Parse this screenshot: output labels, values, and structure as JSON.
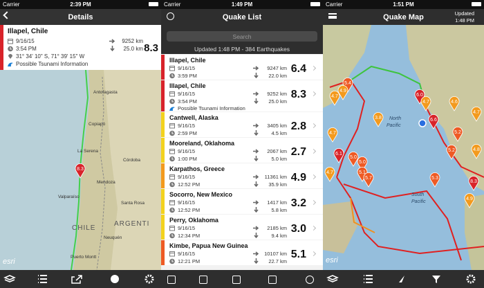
{
  "screens": [
    {
      "status": {
        "carrier": "Carrier",
        "time": "2:39 PM"
      },
      "title": "Details",
      "detail": {
        "name": "Illapel, Chile",
        "date": "9/16/15",
        "time": "3:54 PM",
        "coords": "31° 34' 10\" S, 71° 39' 15\" W",
        "distance": "9252 km",
        "depth": "25.0 km",
        "magnitude": "8.3",
        "tsunami": "Possible Tsunami Information"
      },
      "map_labels": [
        "Antofagasta",
        "Copiapó",
        "La Serena",
        "Córdoba",
        "Mendoza",
        "Valparaíso",
        "Santa Rosa",
        "CHILE",
        "ARGENTI",
        "Neuquén",
        "Puerto Montt"
      ],
      "marker": "8.3",
      "attribution": "esri"
    },
    {
      "status": {
        "carrier": "Carrier",
        "time": "1:49 PM"
      },
      "title": "Quake List",
      "search": "Search",
      "updated": "Updated 1:48 PM - 384 Earthquakes",
      "items": [
        {
          "name": "Illapel, Chile",
          "date": "9/16/15",
          "time": "3:59 PM",
          "distance": "9247 km",
          "depth": "22.0 km",
          "magnitude": "6.4"
        },
        {
          "name": "Illapel, Chile",
          "date": "9/16/15",
          "time": "3:54 PM",
          "distance": "9252 km",
          "depth": "25.0 km",
          "magnitude": "8.3",
          "tsunami": "Possible Tsunami Information"
        },
        {
          "name": "Cantwell, Alaska",
          "date": "9/16/15",
          "time": "2:59 PM",
          "distance": "3405 km",
          "depth": "4.5 km",
          "magnitude": "2.8"
        },
        {
          "name": "Mooreland, Oklahoma",
          "date": "9/16/15",
          "time": "1:00 PM",
          "distance": "2067 km",
          "depth": "5.0 km",
          "magnitude": "2.7"
        },
        {
          "name": "Karpathos, Greece",
          "date": "9/16/15",
          "time": "12:52 PM",
          "distance": "11361 km",
          "depth": "35.9 km",
          "magnitude": "4.9"
        },
        {
          "name": "Socorro, New Mexico",
          "date": "9/16/15",
          "time": "12:52 PM",
          "distance": "1417 km",
          "depth": "5.8 km",
          "magnitude": "3.2"
        },
        {
          "name": "Perry, Oklahoma",
          "date": "9/16/15",
          "time": "12:34 PM",
          "distance": "2185 km",
          "depth": "9.4 km",
          "magnitude": "3.0"
        },
        {
          "name": "Kimbe, Papua New Guinea",
          "date": "9/16/15",
          "time": "12:21 PM",
          "distance": "10107 km",
          "depth": "22.7 km",
          "magnitude": "5.1"
        }
      ]
    },
    {
      "status": {
        "carrier": "Carrier",
        "time": "1:51 PM"
      },
      "title": "Quake Map",
      "updated": [
        "Updated",
        "1:48 PM"
      ],
      "map_labels": [
        "North",
        "Pacific",
        "South",
        "Pacific"
      ],
      "markers": [
        "5.4",
        "4.7",
        "4.9",
        "3.8",
        "4.7",
        "5.2",
        "4.7",
        "6.1",
        "5.0",
        "5.0",
        "5.1",
        "5.7",
        "6.0",
        "4.7",
        "4.6",
        "6.6",
        "5.2",
        "4.8",
        "8.3",
        "5.3",
        "4.7",
        "4.9"
      ],
      "attribution": "esri"
    }
  ]
}
